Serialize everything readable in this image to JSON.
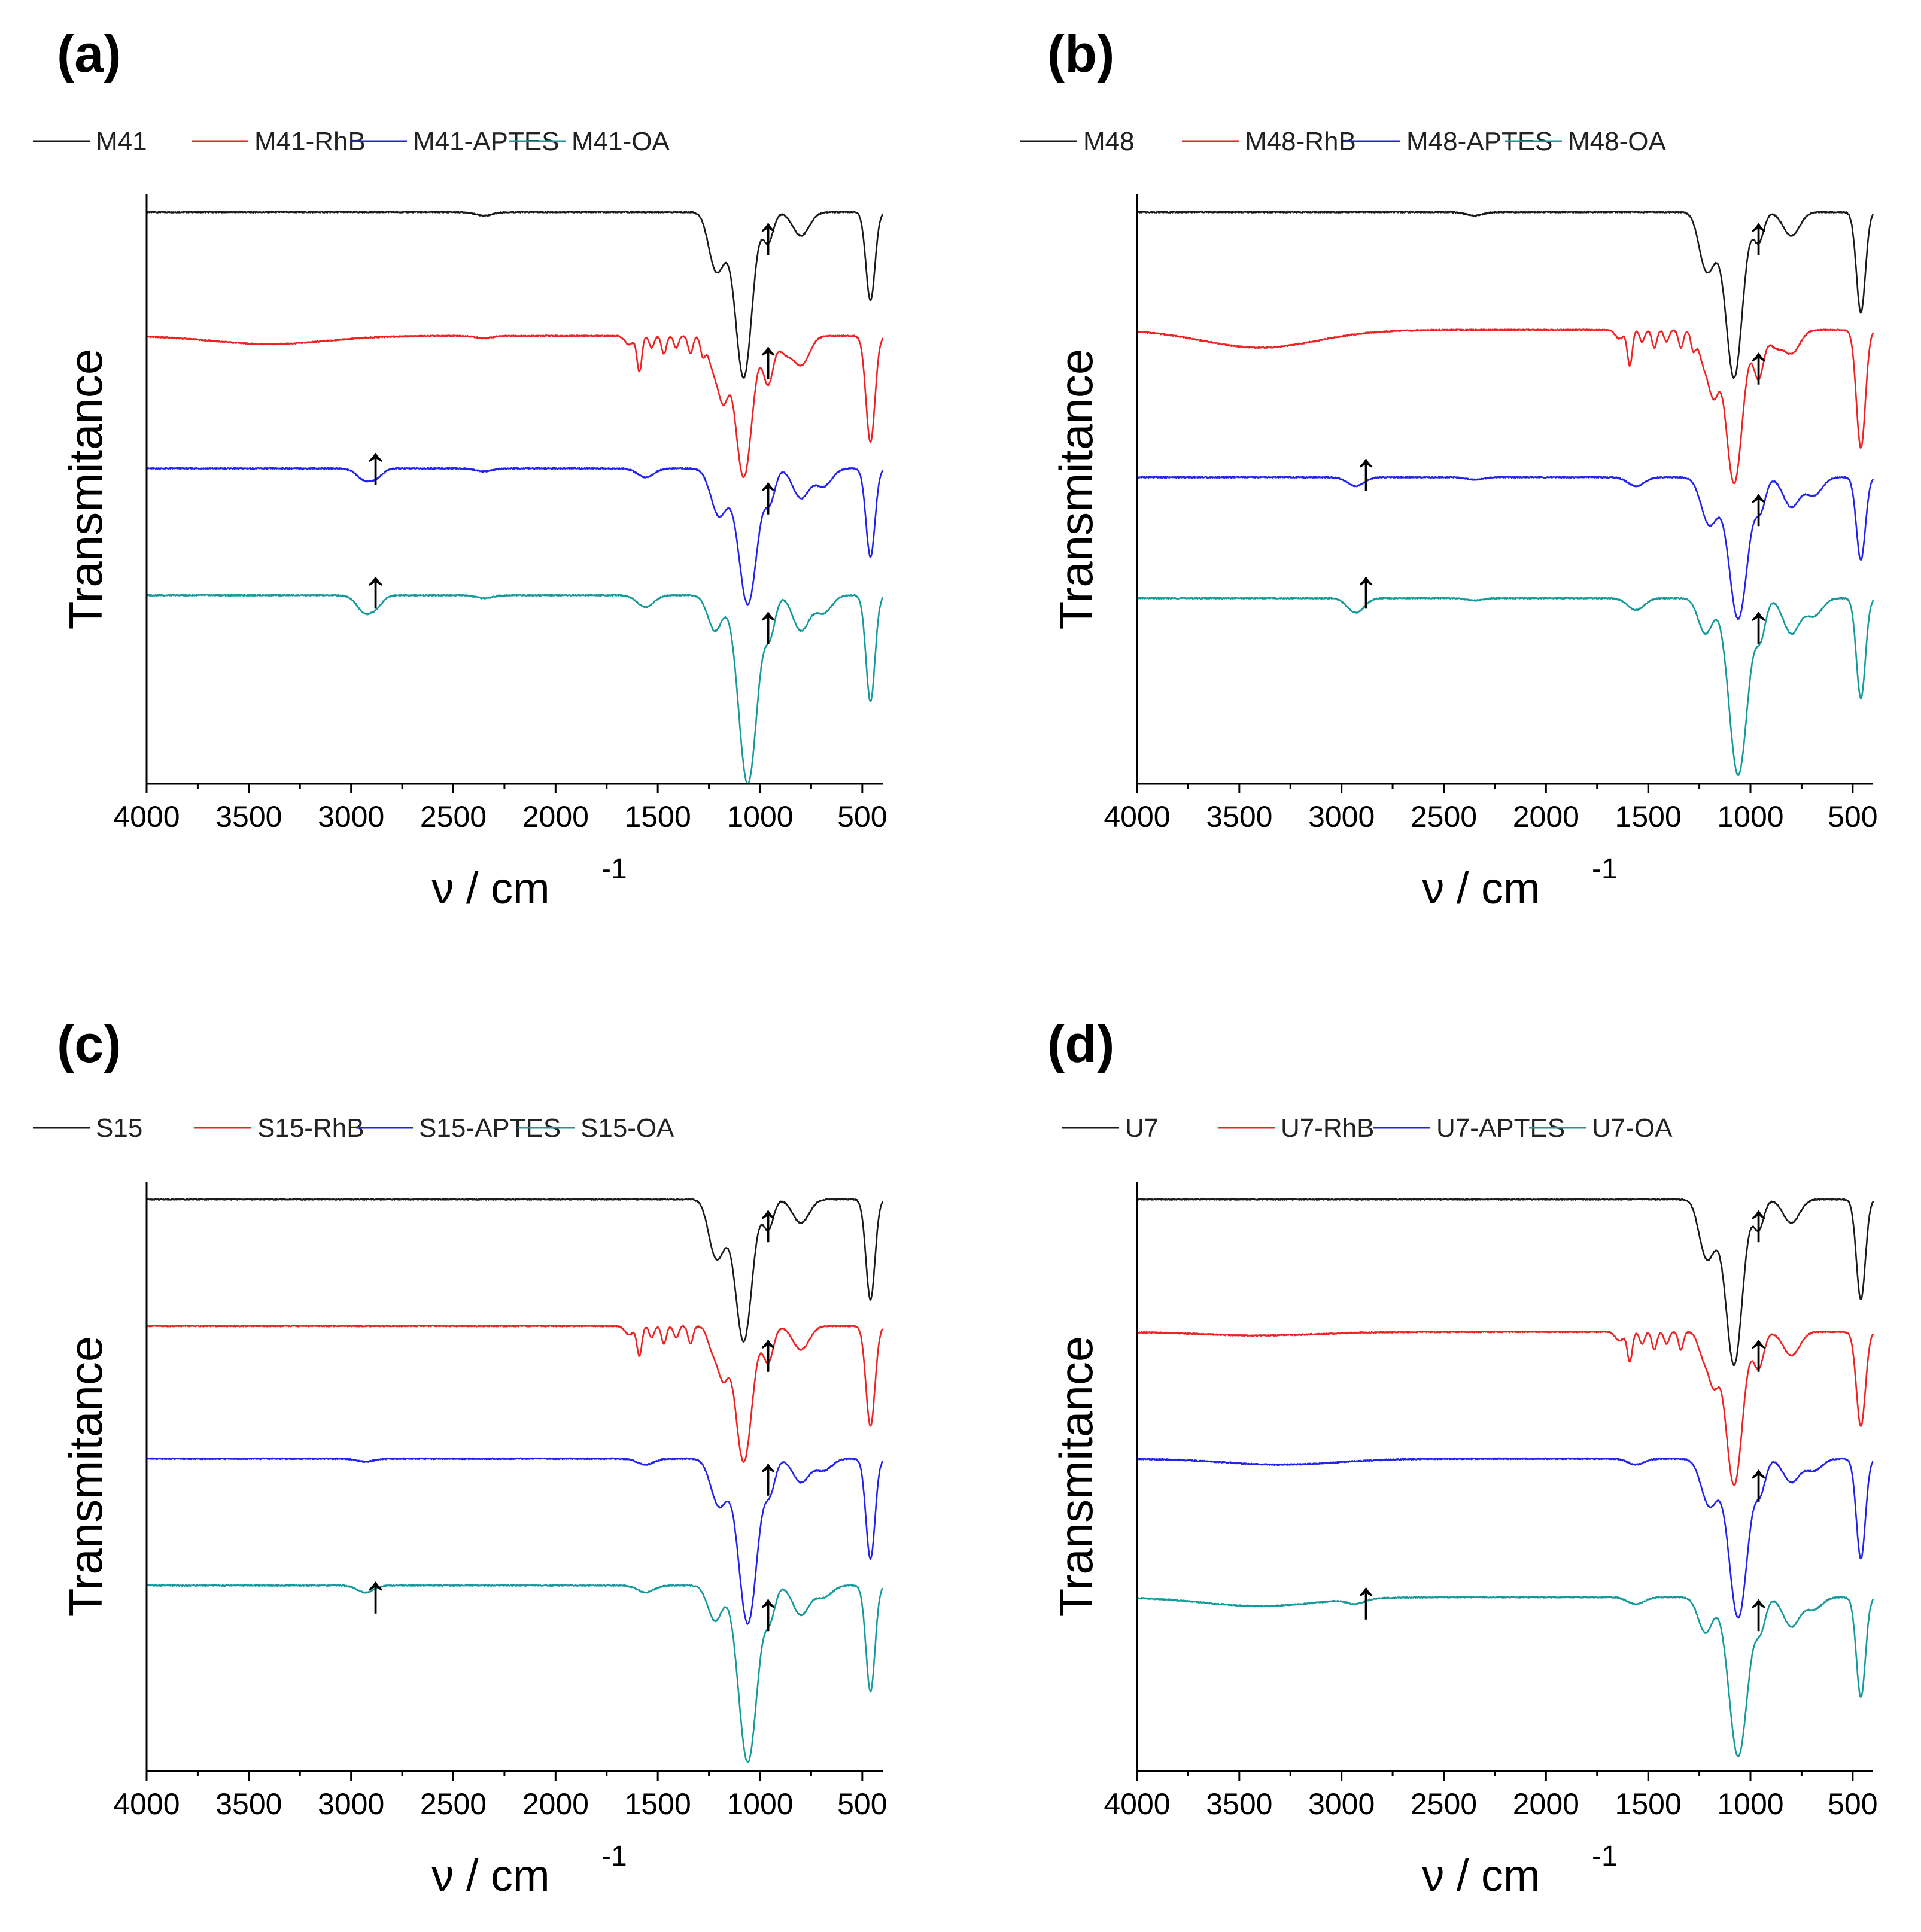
{
  "figure": {
    "description": "FTIR spectra",
    "colors": {
      "black": "#1a1a1a",
      "red": "#ee2222",
      "blue": "#2222ee",
      "teal": "#149a9a"
    }
  },
  "chart_data": [
    {
      "type": "line",
      "panel": "(a)",
      "xlabel": "ν / cm",
      "xlabel_sup": "-1",
      "ylabel": "Transmitance",
      "xlim": [
        4000,
        400
      ],
      "xticks": [
        "4000",
        "3500",
        "3000",
        "2500",
        "2000",
        "1500",
        "1000",
        "500"
      ],
      "tick_values": [
        4000,
        3500,
        3000,
        2500,
        2000,
        1500,
        1000,
        500
      ],
      "ylim": [
        0,
        1
      ],
      "yticks_shown": false,
      "legend": [
        "M41",
        "M41-RhB",
        "M41-APTES",
        "M41-OA"
      ],
      "series": [
        {
          "name": "M41",
          "color": "#1a1a1a",
          "baseline": 0.97,
          "features": [
            [
              2350,
              0.006,
              40
            ],
            [
              1230,
              0.03,
              30
            ],
            [
              1200,
              0.08,
              40
            ],
            [
              1080,
              0.28,
              40
            ],
            [
              960,
              0.05,
              25
            ],
            [
              800,
              0.04,
              40
            ],
            [
              460,
              0.15,
              22
            ]
          ]
        },
        {
          "name": "M41-RhB",
          "color": "#ee2222",
          "baseline": 0.76,
          "features": [
            [
              3400,
              0.014,
              280
            ],
            [
              2350,
              0.004,
              40
            ],
            [
              1640,
              0.015,
              20
            ],
            [
              1590,
              0.06,
              12
            ],
            [
              1530,
              0.02,
              12
            ],
            [
              1470,
              0.03,
              12
            ],
            [
              1410,
              0.02,
              12
            ],
            [
              1340,
              0.03,
              12
            ],
            [
              1280,
              0.03,
              12
            ],
            [
              1230,
              0.05,
              25
            ],
            [
              1180,
              0.1,
              25
            ],
            [
              1080,
              0.24,
              40
            ],
            [
              960,
              0.08,
              25
            ],
            [
              880,
              0.025,
              30
            ],
            [
              800,
              0.05,
              40
            ],
            [
              460,
              0.18,
              22
            ]
          ]
        },
        {
          "name": "M41-APTES",
          "color": "#2222ee",
          "baseline": 0.535,
          "features": [
            [
              2930,
              0.02,
              40
            ],
            [
              2870,
              0.01,
              30
            ],
            [
              2350,
              0.005,
              40
            ],
            [
              1560,
              0.015,
              40
            ],
            [
              1200,
              0.08,
              40
            ],
            [
              1060,
              0.23,
              45
            ],
            [
              950,
              0.05,
              25
            ],
            [
              800,
              0.05,
              40
            ],
            [
              690,
              0.03,
              40
            ],
            [
              460,
              0.15,
              22
            ]
          ]
        },
        {
          "name": "M41-OA",
          "color": "#149a9a",
          "baseline": 0.32,
          "features": [
            [
              2930,
              0.03,
              40
            ],
            [
              2870,
              0.012,
              30
            ],
            [
              2350,
              0.005,
              40
            ],
            [
              1560,
              0.02,
              40
            ],
            [
              1220,
              0.06,
              35
            ],
            [
              1060,
              0.32,
              45
            ],
            [
              950,
              0.06,
              25
            ],
            [
              800,
              0.06,
              40
            ],
            [
              690,
              0.03,
              40
            ],
            [
              460,
              0.18,
              22
            ]
          ]
        }
      ]
    },
    {
      "type": "line",
      "panel": "(b)",
      "xlabel": "ν / cm",
      "xlabel_sup": "-1",
      "ylabel": "Transmitance",
      "xlim": [
        4000,
        400
      ],
      "xticks": [
        "4000",
        "3500",
        "3000",
        "2500",
        "2000",
        "1500",
        "1000",
        "500"
      ],
      "tick_values": [
        4000,
        3500,
        3000,
        2500,
        2000,
        1500,
        1000,
        500
      ],
      "ylim": [
        0,
        1
      ],
      "yticks_shown": false,
      "legend": [
        "M48",
        "M48-RhB",
        "M48-APTES",
        "M48-OA"
      ],
      "series": [
        {
          "name": "M48",
          "color": "#1a1a1a",
          "baseline": 0.97,
          "features": [
            [
              2350,
              0.006,
              40
            ],
            [
              1230,
              0.03,
              30
            ],
            [
              1200,
              0.08,
              40
            ],
            [
              1080,
              0.28,
              40
            ],
            [
              960,
              0.05,
              25
            ],
            [
              800,
              0.04,
              40
            ],
            [
              460,
              0.17,
              22
            ]
          ]
        },
        {
          "name": "M48-RhB",
          "color": "#ee2222",
          "baseline": 0.77,
          "features": [
            [
              3400,
              0.03,
              280
            ],
            [
              1640,
              0.015,
              20
            ],
            [
              1590,
              0.06,
              12
            ],
            [
              1530,
              0.02,
              12
            ],
            [
              1470,
              0.03,
              12
            ],
            [
              1410,
              0.02,
              12
            ],
            [
              1340,
              0.03,
              12
            ],
            [
              1280,
              0.03,
              12
            ],
            [
              1230,
              0.05,
              25
            ],
            [
              1180,
              0.1,
              25
            ],
            [
              1080,
              0.26,
              40
            ],
            [
              960,
              0.08,
              25
            ],
            [
              880,
              0.025,
              30
            ],
            [
              800,
              0.04,
              40
            ],
            [
              460,
              0.2,
              22
            ]
          ]
        },
        {
          "name": "M48-APTES",
          "color": "#2222ee",
          "baseline": 0.52,
          "features": [
            [
              2930,
              0.015,
              40
            ],
            [
              2350,
              0.004,
              40
            ],
            [
              1560,
              0.015,
              40
            ],
            [
              1200,
              0.08,
              40
            ],
            [
              1060,
              0.24,
              45
            ],
            [
              950,
              0.05,
              25
            ],
            [
              800,
              0.05,
              40
            ],
            [
              690,
              0.03,
              40
            ],
            [
              460,
              0.14,
              22
            ]
          ]
        },
        {
          "name": "M48-OA",
          "color": "#149a9a",
          "baseline": 0.315,
          "features": [
            [
              2930,
              0.025,
              40
            ],
            [
              2350,
              0.004,
              40
            ],
            [
              1560,
              0.02,
              40
            ],
            [
              1220,
              0.06,
              35
            ],
            [
              1060,
              0.3,
              45
            ],
            [
              950,
              0.06,
              25
            ],
            [
              800,
              0.06,
              40
            ],
            [
              690,
              0.03,
              40
            ],
            [
              460,
              0.17,
              22
            ]
          ]
        }
      ]
    },
    {
      "type": "line",
      "panel": "(c)",
      "xlabel": "ν / cm",
      "xlabel_sup": "-1",
      "ylabel": "Transmitance",
      "xlim": [
        4000,
        400
      ],
      "xticks": [
        "4000",
        "3500",
        "3000",
        "2500",
        "2000",
        "1500",
        "1000",
        "500"
      ],
      "tick_values": [
        4000,
        3500,
        3000,
        2500,
        2000,
        1500,
        1000,
        500
      ],
      "ylim": [
        0,
        1
      ],
      "yticks_shown": false,
      "legend": [
        "S15",
        "S15-RhB",
        "S15-APTES",
        "S15-OA"
      ],
      "series": [
        {
          "name": "S15",
          "color": "#1a1a1a",
          "baseline": 0.97,
          "features": [
            [
              1230,
              0.03,
              30
            ],
            [
              1200,
              0.08,
              40
            ],
            [
              1080,
              0.24,
              40
            ],
            [
              960,
              0.05,
              25
            ],
            [
              800,
              0.04,
              40
            ],
            [
              460,
              0.17,
              22
            ]
          ]
        },
        {
          "name": "S15-RhB",
          "color": "#ee2222",
          "baseline": 0.755,
          "features": [
            [
              1640,
              0.015,
              20
            ],
            [
              1590,
              0.05,
              12
            ],
            [
              1530,
              0.02,
              12
            ],
            [
              1470,
              0.03,
              12
            ],
            [
              1410,
              0.02,
              12
            ],
            [
              1340,
              0.03,
              12
            ],
            [
              1230,
              0.04,
              25
            ],
            [
              1180,
              0.08,
              25
            ],
            [
              1080,
              0.23,
              40
            ],
            [
              960,
              0.06,
              25
            ],
            [
              800,
              0.04,
              40
            ],
            [
              460,
              0.17,
              22
            ]
          ]
        },
        {
          "name": "S15-APTES",
          "color": "#2222ee",
          "baseline": 0.53,
          "features": [
            [
              2930,
              0.005,
              40
            ],
            [
              1560,
              0.01,
              40
            ],
            [
              1200,
              0.08,
              40
            ],
            [
              1060,
              0.28,
              45
            ],
            [
              950,
              0.05,
              25
            ],
            [
              800,
              0.04,
              40
            ],
            [
              690,
              0.02,
              40
            ],
            [
              460,
              0.17,
              22
            ]
          ]
        },
        {
          "name": "S15-OA",
          "color": "#149a9a",
          "baseline": 0.315,
          "features": [
            [
              2930,
              0.012,
              40
            ],
            [
              1560,
              0.012,
              40
            ],
            [
              1220,
              0.06,
              35
            ],
            [
              1060,
              0.3,
              45
            ],
            [
              950,
              0.05,
              25
            ],
            [
              800,
              0.05,
              40
            ],
            [
              690,
              0.02,
              40
            ],
            [
              460,
              0.18,
              22
            ]
          ]
        }
      ]
    },
    {
      "type": "line",
      "panel": "(d)",
      "xlabel": "ν / cm",
      "xlabel_sup": "-1",
      "ylabel": "Transmitance",
      "xlim": [
        4000,
        400
      ],
      "xticks": [
        "4000",
        "3500",
        "3000",
        "2500",
        "2000",
        "1500",
        "1000",
        "500"
      ],
      "tick_values": [
        4000,
        3500,
        3000,
        2500,
        2000,
        1500,
        1000,
        500
      ],
      "ylim": [
        0,
        1
      ],
      "yticks_shown": false,
      "legend": [
        "U7",
        "U7-RhB",
        "U7-APTES",
        "U7-OA"
      ],
      "series": [
        {
          "name": "U7",
          "color": "#1a1a1a",
          "baseline": 0.97,
          "features": [
            [
              1230,
              0.03,
              30
            ],
            [
              1200,
              0.08,
              40
            ],
            [
              1080,
              0.28,
              40
            ],
            [
              960,
              0.05,
              25
            ],
            [
              800,
              0.04,
              40
            ],
            [
              460,
              0.17,
              22
            ]
          ]
        },
        {
          "name": "U7-RhB",
          "color": "#ee2222",
          "baseline": 0.745,
          "features": [
            [
              3400,
              0.006,
              280
            ],
            [
              1640,
              0.015,
              20
            ],
            [
              1590,
              0.05,
              12
            ],
            [
              1530,
              0.02,
              12
            ],
            [
              1470,
              0.03,
              12
            ],
            [
              1410,
              0.02,
              12
            ],
            [
              1340,
              0.03,
              12
            ],
            [
              1230,
              0.04,
              25
            ],
            [
              1180,
              0.08,
              25
            ],
            [
              1080,
              0.26,
              40
            ],
            [
              960,
              0.06,
              25
            ],
            [
              800,
              0.04,
              40
            ],
            [
              460,
              0.16,
              22
            ]
          ]
        },
        {
          "name": "U7-APTES",
          "color": "#2222ee",
          "baseline": 0.53,
          "features": [
            [
              3300,
              0.01,
              280
            ],
            [
              1560,
              0.01,
              40
            ],
            [
              1200,
              0.08,
              40
            ],
            [
              1060,
              0.27,
              45
            ],
            [
              950,
              0.05,
              25
            ],
            [
              800,
              0.04,
              40
            ],
            [
              690,
              0.02,
              40
            ],
            [
              460,
              0.17,
              22
            ]
          ]
        },
        {
          "name": "U7-OA",
          "color": "#149a9a",
          "baseline": 0.295,
          "features": [
            [
              3400,
              0.015,
              280
            ],
            [
              2930,
              0.008,
              40
            ],
            [
              1560,
              0.012,
              40
            ],
            [
              1220,
              0.06,
              35
            ],
            [
              1060,
              0.27,
              45
            ],
            [
              950,
              0.05,
              25
            ],
            [
              800,
              0.05,
              40
            ],
            [
              690,
              0.02,
              40
            ],
            [
              460,
              0.17,
              22
            ]
          ]
        }
      ]
    }
  ],
  "annotations": {
    "arrow_glyph": "↑",
    "panels": [
      {
        "panel": "(a)",
        "arrows": [
          [
            960,
            0.9
          ],
          [
            960,
            0.69
          ],
          [
            960,
            0.46
          ],
          [
            960,
            0.24
          ],
          [
            2880,
            0.51
          ],
          [
            2880,
            0.3
          ]
        ]
      },
      {
        "panel": "(b)",
        "arrows": [
          [
            960,
            0.9
          ],
          [
            960,
            0.68
          ],
          [
            960,
            0.44
          ],
          [
            960,
            0.24
          ],
          [
            2880,
            0.5
          ],
          [
            2880,
            0.3
          ]
        ]
      },
      {
        "panel": "(c)",
        "arrows": [
          [
            960,
            0.9
          ],
          [
            960,
            0.68
          ],
          [
            960,
            0.47
          ],
          [
            960,
            0.24
          ],
          [
            2880,
            0.27
          ]
        ]
      },
      {
        "panel": "(d)",
        "arrows": [
          [
            960,
            0.9
          ],
          [
            960,
            0.68
          ],
          [
            960,
            0.46
          ],
          [
            960,
            0.24
          ],
          [
            2880,
            0.26
          ]
        ]
      }
    ]
  }
}
